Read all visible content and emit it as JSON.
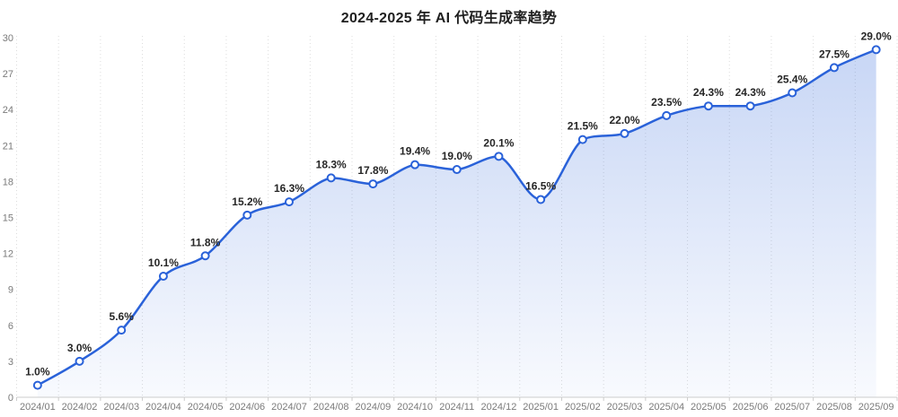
{
  "chart_data": {
    "type": "line",
    "title": "2024-2025 年 AI 代码生成率趋势",
    "categories": [
      "2024/01",
      "2024/02",
      "2024/03",
      "2024/04",
      "2024/05",
      "2024/06",
      "2024/07",
      "2024/08",
      "2024/09",
      "2024/10",
      "2024/11",
      "2024/12",
      "2025/01",
      "2025/02",
      "2025/03",
      "2025/04",
      "2025/05",
      "2025/06",
      "2025/07",
      "2025/08",
      "2025/09"
    ],
    "values": [
      1.0,
      3.0,
      5.6,
      10.1,
      11.8,
      15.2,
      16.3,
      18.3,
      17.8,
      19.4,
      19.0,
      20.1,
      16.5,
      21.5,
      22.0,
      23.5,
      24.3,
      24.3,
      25.4,
      27.5,
      29.0
    ],
    "point_labels": [
      "1.0%",
      "3.0%",
      "5.6%",
      "10.1%",
      "11.8%",
      "15.2%",
      "16.3%",
      "18.3%",
      "17.8%",
      "19.4%",
      "19.0%",
      "20.1%",
      "16.5%",
      "21.5%",
      "22.0%",
      "23.5%",
      "24.3%",
      "24.3%",
      "25.4%",
      "27.5%",
      "29.0%"
    ],
    "yticks": [
      0,
      3,
      6,
      9,
      12,
      15,
      18,
      21,
      24,
      27,
      30
    ],
    "ylim": [
      0,
      30
    ],
    "xlabel": "",
    "ylabel": "",
    "legend": "none",
    "grid": "vertical-dotted",
    "smooth": true,
    "colors": {
      "line": "#2a62d9",
      "marker_fill": "#ffffff",
      "area_top": "rgba(42, 98, 217, 0.26)",
      "area_bottom": "rgba(42, 98, 217, 0.03)",
      "gridline": "#dcdcdc",
      "axis_line": "#cccccc",
      "axis_label": "#7a7a7a",
      "data_label": "#262626",
      "title": "#1f1f1f"
    }
  }
}
